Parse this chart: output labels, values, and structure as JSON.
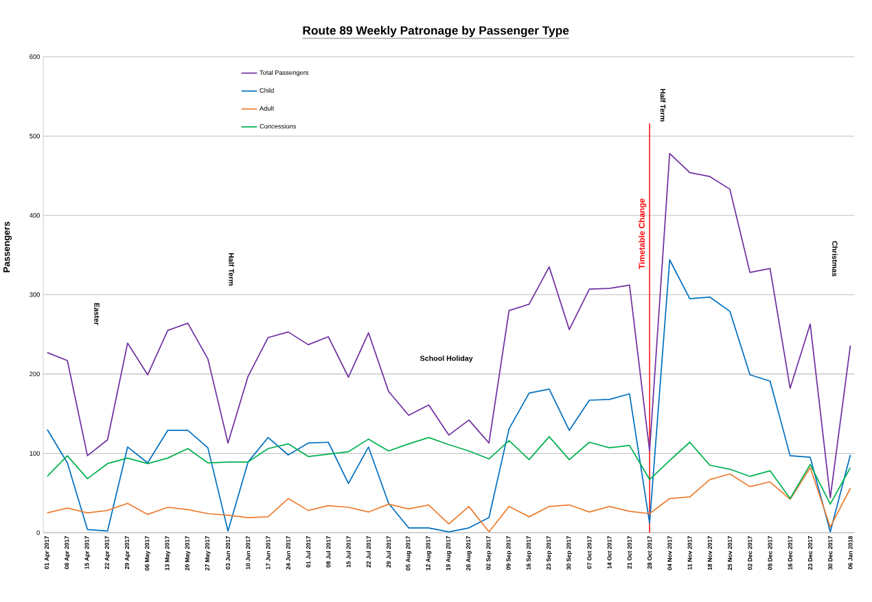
{
  "chart_data": {
    "type": "line",
    "title": "Route 89 Weekly Patronage by Passenger Type",
    "ylabel": "Passengers",
    "categories": [
      "01 Apr 2017",
      "08 Apr 2017",
      "15 Apr 2017",
      "22 Apr 2017",
      "29 Apr 2017",
      "06 May 2017",
      "13 May 2017",
      "20 May 2017",
      "27 May 2017",
      "03 Jun 2017",
      "10 Jun 2017",
      "17 Jun 2017",
      "24 Jun 2017",
      "01 Jul 2017",
      "08 Jul 2017",
      "15 Jul 2017",
      "22 Jul 2017",
      "29 Jul 2017",
      "05 Aug 2017",
      "12 Aug 2017",
      "19 Aug 2017",
      "26 Aug 2017",
      "02 Sep 2017",
      "09 Sep 2017",
      "16 Sep 2017",
      "23 Sep 2017",
      "30 Sep 2017",
      "07 Oct 2017",
      "14 Oct 2017",
      "21 Oct 2017",
      "28 Oct 2017",
      "04 Nov 2017",
      "11 Nov 2017",
      "18 Nov 2017",
      "25 Nov 2017",
      "02 Dec 2017",
      "09 Dec 2017",
      "16 Dec 2017",
      "23 Dec 2017",
      "30 Dec 2017",
      "06 Jan 2018"
    ],
    "series": [
      {
        "name": "Total Passengers",
        "color": "#7030a0",
        "values": [
          227,
          217,
          97,
          117,
          239,
          199,
          255,
          264,
          219,
          113,
          197,
          246,
          253,
          237,
          247,
          196,
          252,
          178,
          148,
          161,
          123,
          142,
          113,
          280,
          288,
          335,
          256,
          307,
          308,
          312,
          103,
          478,
          454,
          449,
          433,
          328,
          333,
          182,
          263,
          44,
          236
        ]
      },
      {
        "name": "Child",
        "color": "#0070c0",
        "values": [
          130,
          88,
          4,
          2,
          108,
          88,
          129,
          129,
          107,
          2,
          89,
          120,
          98,
          113,
          114,
          62,
          108,
          37,
          6,
          6,
          1,
          6,
          19,
          131,
          176,
          181,
          129,
          167,
          168,
          175,
          12,
          344,
          295,
          297,
          279,
          199,
          191,
          97,
          95,
          1,
          98
        ]
      },
      {
        "name": "Adult",
        "color": "#ed7d31",
        "values": [
          25,
          31,
          25,
          28,
          37,
          23,
          32,
          29,
          24,
          22,
          19,
          20,
          43,
          28,
          34,
          32,
          26,
          36,
          30,
          35,
          11,
          33,
          1,
          33,
          20,
          33,
          35,
          26,
          33,
          27,
          24,
          43,
          45,
          67,
          74,
          58,
          64,
          42,
          82,
          7,
          56
        ]
      },
      {
        "name": "Concessions",
        "color": "#00b050",
        "values": [
          71,
          97,
          68,
          87,
          94,
          87,
          94,
          106,
          88,
          89,
          89,
          106,
          112,
          96,
          99,
          102,
          118,
          103,
          112,
          120,
          111,
          103,
          93,
          116,
          92,
          121,
          92,
          114,
          107,
          110,
          67,
          91,
          114,
          85,
          80,
          71,
          78,
          43,
          86,
          36,
          82
        ]
      }
    ],
    "ylim": [
      0,
      600
    ],
    "yticks": [
      0,
      100,
      200,
      300,
      400,
      500,
      600
    ],
    "grid": "y",
    "legend": "top left",
    "marker": "none",
    "line_style": "solid",
    "ref_lines": [
      {
        "axis": "x",
        "value": "28 Oct 2017",
        "label": "Timetable Change",
        "color": "#ff0000"
      }
    ],
    "annotations": [
      "Easter",
      "Half Term",
      "School Holiday",
      "Half Term",
      "Christmas"
    ]
  }
}
